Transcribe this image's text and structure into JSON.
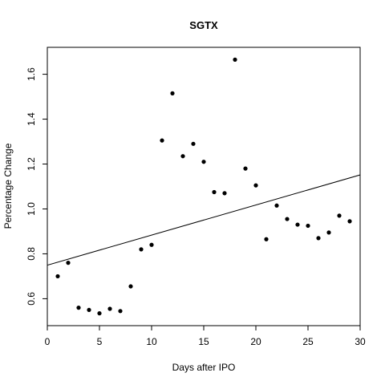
{
  "chart_data": {
    "type": "scatter",
    "title": "SGTX",
    "xlabel": "Days after IPO",
    "ylabel": "Percentage Change",
    "xlim": [
      0,
      30
    ],
    "ylim": [
      0.48,
      1.72
    ],
    "xticks": [
      0,
      5,
      10,
      15,
      20,
      25,
      30
    ],
    "xtick_labels": [
      "0",
      "5",
      "10",
      "15",
      "20",
      "25",
      "30"
    ],
    "yticks": [
      0.6,
      0.8,
      1.0,
      1.2,
      1.4,
      1.6
    ],
    "ytick_labels": [
      "0.6",
      "0.8",
      "1.0",
      "1.2",
      "1.4",
      "1.6"
    ],
    "grid": false,
    "series": [
      {
        "x": [
          1,
          2,
          3,
          4,
          5,
          6,
          7,
          8,
          9,
          10,
          11,
          12,
          13,
          14,
          15,
          16,
          17,
          18,
          19,
          20,
          21,
          22,
          23,
          24,
          25,
          26,
          27,
          28,
          29
        ],
        "y": [
          0.7,
          0.76,
          0.56,
          0.55,
          0.535,
          0.555,
          0.545,
          0.655,
          0.82,
          0.84,
          1.305,
          1.515,
          1.235,
          1.29,
          1.21,
          1.075,
          1.07,
          1.665,
          1.18,
          1.105,
          0.865,
          1.015,
          0.955,
          0.93,
          0.925,
          0.87,
          0.895,
          0.97,
          0.945
        ]
      }
    ],
    "trendline": {
      "type": "linear",
      "x": [
        -0.7,
        31
      ],
      "y": [
        0.74,
        1.165
      ]
    },
    "marker_color": "#000000",
    "line_color": "#000000"
  }
}
